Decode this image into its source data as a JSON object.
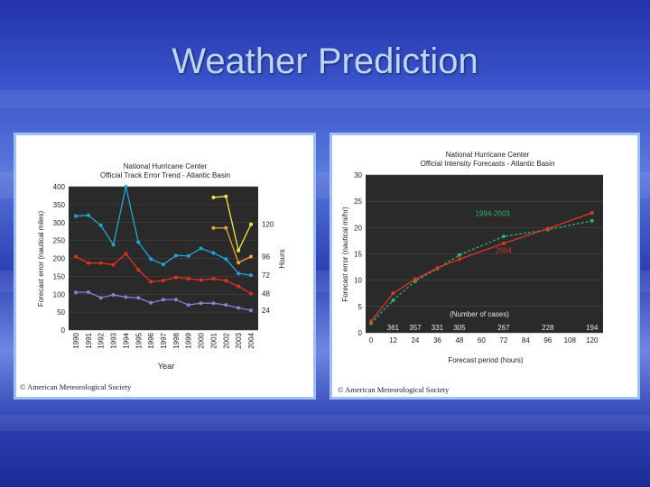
{
  "slide": {
    "title": "Weather Prediction"
  },
  "colors": {
    "background": "#2c42b6",
    "title": "#bcd6f7",
    "panel_border": "#9fc0f2"
  },
  "chart_data": [
    {
      "type": "line",
      "title": "National Hurricane Center",
      "subtitle": "Official Track Error Trend - Atlantic Basin",
      "xlabel": "Year",
      "ylabel": "Forecast error (nautical miles)",
      "right_axis_label": "Hours",
      "copyright": "© American Meteorological Society",
      "categories": [
        "1990",
        "1991",
        "1992",
        "1993",
        "1994",
        "1995",
        "1996",
        "1997",
        "1998",
        "1999",
        "2000",
        "2001",
        "2002",
        "2003",
        "2004"
      ],
      "ylim": [
        0,
        400
      ],
      "yticks": [
        "0",
        "50",
        "100",
        "150",
        "200",
        "250",
        "300",
        "350",
        "400"
      ],
      "series": [
        {
          "name": "120",
          "color": "#f2e64a",
          "values": [
            null,
            null,
            null,
            null,
            null,
            null,
            null,
            null,
            null,
            null,
            null,
            370,
            373,
            222,
            295
          ]
        },
        {
          "name": "96",
          "color": "#f0a13a",
          "values": [
            null,
            null,
            null,
            null,
            null,
            null,
            null,
            null,
            null,
            null,
            null,
            285,
            285,
            188,
            205
          ]
        },
        {
          "name": "72",
          "color": "#1fa7d6",
          "values": [
            318,
            320,
            292,
            238,
            400,
            245,
            198,
            183,
            208,
            207,
            228,
            215,
            198,
            158,
            153
          ]
        },
        {
          "name": "48",
          "color": "#e0301e",
          "values": [
            205,
            187,
            187,
            182,
            213,
            168,
            135,
            138,
            147,
            143,
            140,
            143,
            138,
            122,
            102
          ]
        },
        {
          "name": "24",
          "color": "#8b7fd0",
          "values": [
            105,
            106,
            90,
            98,
            92,
            90,
            76,
            85,
            85,
            70,
            75,
            75,
            70,
            62,
            55
          ]
        }
      ]
    },
    {
      "type": "line",
      "title": "National Hurricane Center",
      "subtitle": "Official Intensity Forecasts - Atlantic Basin",
      "xlabel": "Forecast period (hours)",
      "ylabel": "Forecast error (nautical mi/hr)",
      "copyright": "© American Meteorological Society",
      "x": [
        0,
        12,
        24,
        36,
        48,
        60,
        72,
        84,
        96,
        108,
        120
      ],
      "xticks": [
        "0",
        "12",
        "24",
        "36",
        "48",
        "60",
        "72",
        "84",
        "96",
        "108",
        "120"
      ],
      "ylim": [
        0,
        30
      ],
      "yticks": [
        "0",
        "5",
        "10",
        "15",
        "20",
        "25",
        "30"
      ],
      "series": [
        {
          "name": "1994-2003",
          "color": "#2fb36a",
          "label_x": 114,
          "label_y": 21.3,
          "x": [
            0,
            12,
            24,
            36,
            48,
            72,
            96,
            120
          ],
          "values": [
            1.8,
            6.2,
            9.8,
            12.2,
            14.8,
            18.3,
            19.6,
            21.3
          ]
        },
        {
          "name": "2004",
          "color": "#e0352a",
          "label_x": 96,
          "label_y": 17,
          "x": [
            0,
            12,
            24,
            36,
            48,
            72,
            96,
            120
          ],
          "values": [
            2.2,
            7.5,
            10.2,
            12.3,
            14.0,
            17.0,
            19.8,
            22.8
          ]
        }
      ],
      "annotation": "(Number of cases)",
      "case_counts": [
        {
          "x": 12,
          "label": "361"
        },
        {
          "x": 24,
          "label": "357"
        },
        {
          "x": 36,
          "label": "331"
        },
        {
          "x": 48,
          "label": "305"
        },
        {
          "x": 72,
          "label": "267"
        },
        {
          "x": 96,
          "label": "228"
        },
        {
          "x": 120,
          "label": "194"
        }
      ]
    }
  ]
}
